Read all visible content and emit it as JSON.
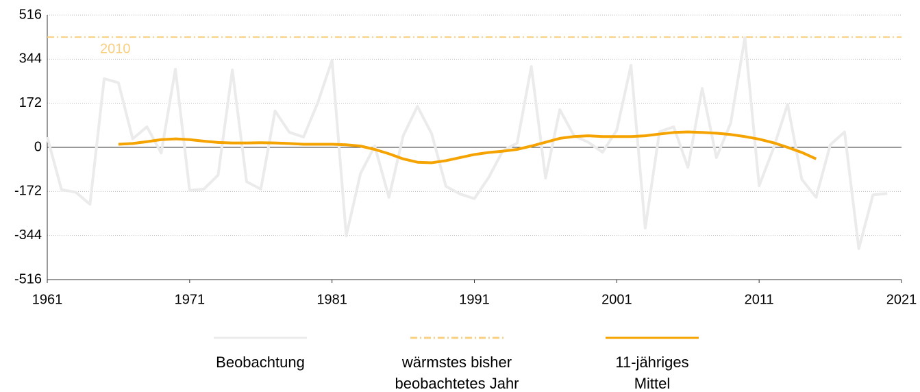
{
  "chart_data": {
    "type": "line",
    "x": [
      1961,
      1962,
      1963,
      1964,
      1965,
      1966,
      1967,
      1968,
      1969,
      1970,
      1971,
      1972,
      1973,
      1974,
      1975,
      1976,
      1977,
      1978,
      1979,
      1980,
      1981,
      1982,
      1983,
      1984,
      1985,
      1986,
      1987,
      1988,
      1989,
      1990,
      1991,
      1992,
      1993,
      1994,
      1995,
      1996,
      1997,
      1998,
      1999,
      2000,
      2001,
      2002,
      2003,
      2004,
      2005,
      2006,
      2007,
      2008,
      2009,
      2010,
      2011,
      2012,
      2013,
      2014,
      2015,
      2016,
      2017,
      2018,
      2019,
      2020
    ],
    "series": [
      {
        "name": "Beobachtung",
        "color": "#ebebeb",
        "width": 4,
        "values": [
          40,
          -165,
          -175,
          -222,
          268,
          252,
          33,
          80,
          -22,
          305,
          -168,
          -163,
          -108,
          302,
          -134,
          -163,
          142,
          59,
          40,
          174,
          340,
          -345,
          -102,
          5,
          -195,
          45,
          160,
          53,
          -152,
          -182,
          -200,
          -118,
          -13,
          16,
          315,
          -120,
          147,
          45,
          20,
          -19,
          67,
          320,
          -315,
          61,
          80,
          -78,
          230,
          -40,
          94,
          428,
          -150,
          -5,
          168,
          -125,
          -195,
          10,
          60,
          -395,
          -185,
          -180
        ]
      },
      {
        "name": "11-jähriges Mittel",
        "color": "#f5a300",
        "width": 4,
        "values": [
          null,
          null,
          null,
          null,
          null,
          12,
          15,
          22,
          30,
          33,
          30,
          24,
          19,
          17,
          17,
          18,
          17,
          15,
          12,
          12,
          12,
          10,
          5,
          -8,
          -25,
          -45,
          -58,
          -60,
          -52,
          -40,
          -28,
          -20,
          -15,
          -8,
          5,
          20,
          35,
          42,
          45,
          42,
          42,
          42,
          45,
          52,
          58,
          60,
          58,
          55,
          50,
          42,
          32,
          18,
          0,
          -20,
          -45,
          null,
          null,
          null,
          null,
          null
        ]
      }
    ],
    "reference": {
      "name": "wärmstes bisher beobachtetes Jahr",
      "value": 430,
      "label": "2010",
      "color": "#f9cf80"
    },
    "xlim": [
      1961,
      2021
    ],
    "xticks": [
      1961,
      1971,
      1981,
      1991,
      2001,
      2011,
      2021
    ],
    "ylim": [
      -516,
      516
    ],
    "yticks": [
      -516,
      -344,
      -172,
      0,
      172,
      344,
      516
    ],
    "grid": true
  }
}
